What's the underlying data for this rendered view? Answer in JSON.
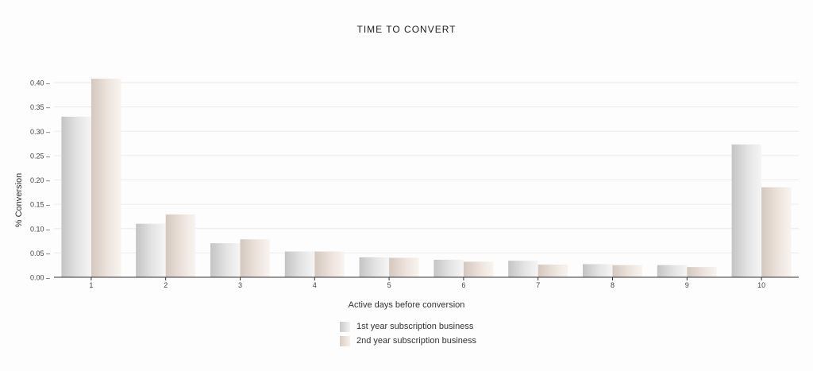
{
  "chart_data": {
    "type": "bar",
    "title": "TIME TO CONVERT",
    "xlabel": "Active days before conversion",
    "ylabel": "% Conversion",
    "categories": [
      "1",
      "2",
      "3",
      "4",
      "5",
      "6",
      "7",
      "8",
      "9",
      "10"
    ],
    "series": [
      {
        "name": "1st year subscription business",
        "values": [
          0.33,
          0.11,
          0.07,
          0.053,
          0.041,
          0.036,
          0.034,
          0.027,
          0.025,
          0.273
        ]
      },
      {
        "name": "2nd year subscription business",
        "values": [
          0.408,
          0.129,
          0.078,
          0.053,
          0.04,
          0.032,
          0.026,
          0.025,
          0.021,
          0.185
        ]
      }
    ],
    "ylim": [
      0,
      0.4
    ],
    "yticks": [
      "0.00",
      "0.05",
      "0.10",
      "0.15",
      "0.20",
      "0.25",
      "0.30",
      "0.35",
      "0.40"
    ],
    "grid": true,
    "legend_position": "bottom-center",
    "colors": {
      "series_0_dark": "#c6c6c6",
      "series_0_light": "#f4f4f4",
      "series_1_dark": "#d6cbc1",
      "series_1_light": "#f8f2ed",
      "grid": "#ececec",
      "axis": "#333333"
    }
  }
}
